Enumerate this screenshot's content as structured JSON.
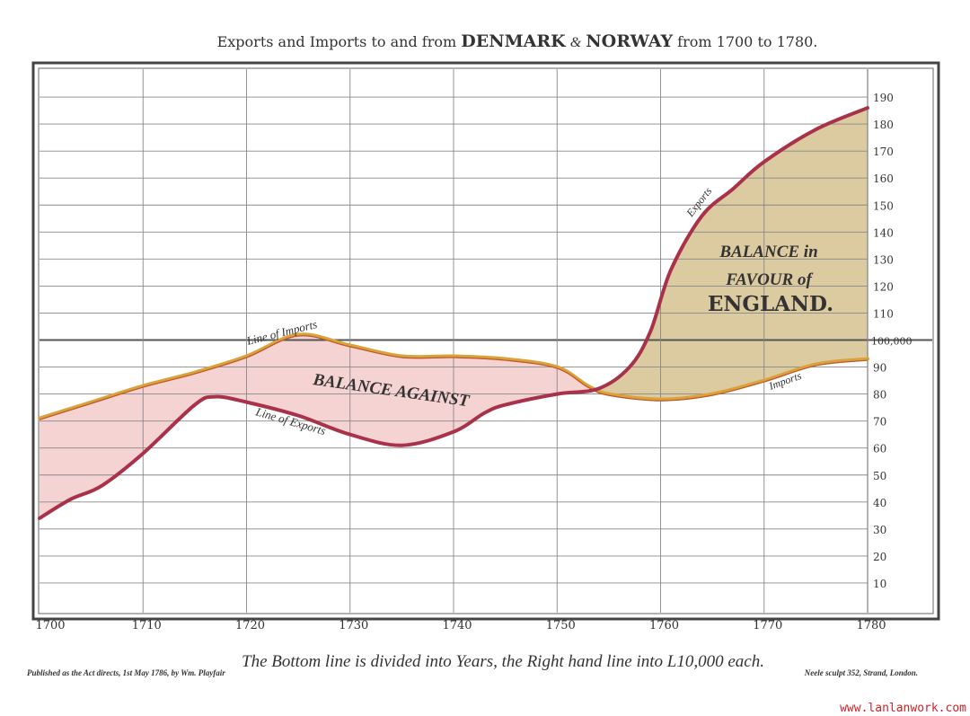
{
  "chart_data": {
    "type": "area",
    "title_parts": {
      "lead": "Exports and Imports to and from",
      "country1": "DENMARK",
      "amp": "&",
      "country2": "NORWAY",
      "tail": "from 1700 to 1780."
    },
    "xlabel": "The Bottom line is divided into Years, the Right hand line into L10,000 each.",
    "ylabel": "",
    "xlim": [
      1700,
      1780
    ],
    "ylim": [
      0,
      200
    ],
    "x_ticks": [
      1700,
      1710,
      1720,
      1730,
      1740,
      1750,
      1760,
      1770,
      1780
    ],
    "y_ticks": [
      10,
      20,
      30,
      40,
      50,
      60,
      70,
      80,
      90,
      110,
      120,
      130,
      140,
      150,
      160,
      170,
      180,
      190
    ],
    "y_tick_100_label": "100,000",
    "y_unit": "£10,000",
    "grid": true,
    "series": [
      {
        "name": "Line of Imports",
        "color": "#d9a23a",
        "x": [
          1700,
          1705,
          1710,
          1715,
          1720,
          1725,
          1730,
          1735,
          1740,
          1745,
          1750,
          1753,
          1755,
          1760,
          1765,
          1770,
          1775,
          1780
        ],
        "y": [
          71,
          77,
          83,
          88,
          94,
          102,
          98,
          94,
          94,
          93,
          90,
          83,
          80,
          78,
          80,
          85,
          91,
          93
        ]
      },
      {
        "name": "Line of Exports",
        "color": "#a8324a",
        "x": [
          1700,
          1703,
          1706,
          1710,
          1715,
          1717,
          1720,
          1725,
          1730,
          1735,
          1740,
          1743,
          1745,
          1750,
          1754,
          1757,
          1759,
          1761,
          1764,
          1767,
          1770,
          1775,
          1780
        ],
        "y": [
          34,
          41,
          46,
          58,
          76,
          79,
          77,
          72,
          65,
          61,
          66,
          73,
          76,
          80,
          82,
          90,
          103,
          126,
          146,
          156,
          166,
          178,
          186
        ]
      }
    ],
    "fill_colors": {
      "balance_against": "#f6d3d3",
      "balance_favour": "#dccaa0"
    },
    "annotations": {
      "imports_label": "Line of Imports",
      "exports_label": "Line of Exports",
      "exports_short": "Exports",
      "imports_short": "Imports",
      "balance_against": "BALANCE AGAINST",
      "favour_line1": "BALANCE in",
      "favour_line2": "FAVOUR of",
      "favour_line3": "ENGLAND."
    },
    "credits": {
      "left": "Published as the Act directs, 1st May 1786, by Wm. Playfair",
      "right": "Neele sculpt 352, Strand, London."
    }
  },
  "watermark": "www.lanlanwork.com"
}
